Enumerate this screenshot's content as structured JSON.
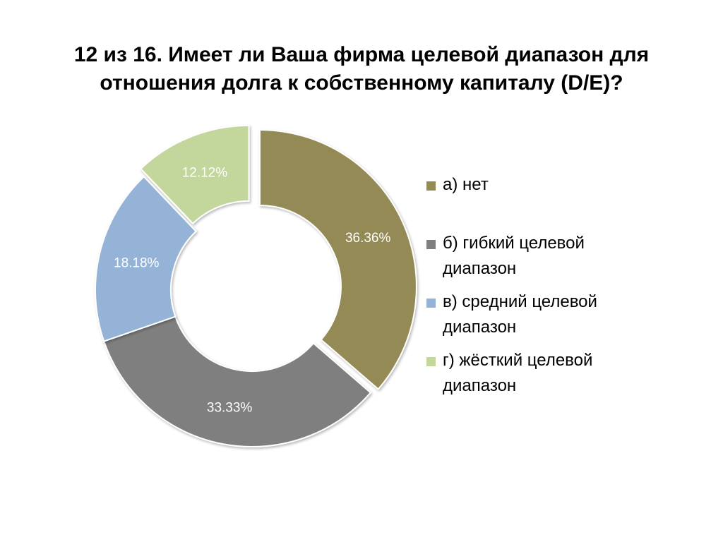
{
  "title_lines": [
    "12 из 16. Имеет ли Ваша фирма целевой диапазон для",
    "отношения долга к собственному капиталу (D/E)?"
  ],
  "chart_data": {
    "type": "pie",
    "variant": "donut",
    "title": "12 из 16. Имеет ли Ваша фирма целевой диапазон для отношения долга к собственному капиталу (D/E)?",
    "categories": [
      "а) нет",
      "б) гибкий целевой диапазон",
      "в) средний целевой диапазон",
      "г) жёсткий целевой диапазон"
    ],
    "values": [
      36.36,
      33.33,
      18.18,
      12.12
    ],
    "data_labels": [
      "36.36%",
      "33.33%",
      "18.18%",
      "12.12%"
    ],
    "colors": [
      "#948A54",
      "#7F7F7F",
      "#95B3D7",
      "#C3D69B"
    ],
    "exploded": [
      true,
      false,
      false,
      true
    ],
    "legend_position": "right"
  },
  "legend": [
    {
      "lines": [
        "а) нет"
      ],
      "color": "#948A54"
    },
    {
      "lines": [
        "б) гибкий целевой",
        "диапазон"
      ],
      "color": "#7F7F7F"
    },
    {
      "lines": [
        "в) средний целевой",
        "диапазон"
      ],
      "color": "#95B3D7"
    },
    {
      "lines": [
        "г) жёсткий целевой",
        "диапазон"
      ],
      "color": "#C3D69B"
    }
  ]
}
